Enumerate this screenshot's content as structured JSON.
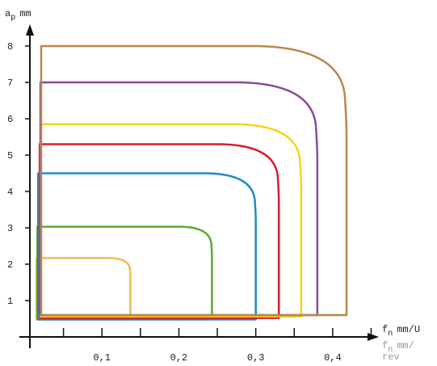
{
  "chart_data": {
    "type": "line",
    "title": "",
    "y_axis": {
      "label_main": "a",
      "label_sub": "p",
      "label_unit": "mm",
      "range": [
        0,
        8.6
      ],
      "ticks": [
        "1",
        "2",
        "3",
        "4",
        "5",
        "6",
        "7",
        "8"
      ]
    },
    "x_axis": {
      "label_main": "f",
      "label_sub": "n",
      "label_unit": "mm/U",
      "label_secondary": "f",
      "label_secondary_sub": "n",
      "label_secondary_unit": "mm/",
      "label_secondary_line2": "rev",
      "range": [
        0,
        0.46
      ],
      "ticks": [
        "0,1",
        "0,2",
        "0,3",
        "0,4"
      ]
    },
    "grid": false,
    "series": [
      {
        "color": "#f5b94f",
        "x_min": 0.015,
        "x_max": 0.137,
        "y_min": 0.48,
        "y_max": 2.17
      },
      {
        "color": "#5aab2e",
        "x_min": 0.016,
        "x_max": 0.243,
        "y_min": 0.48,
        "y_max": 3.03
      },
      {
        "color": "#1a8cc8",
        "x_min": 0.017,
        "x_max": 0.3,
        "y_min": 0.48,
        "y_max": 4.5
      },
      {
        "color": "#d81e2a",
        "x_min": 0.019,
        "x_max": 0.33,
        "y_min": 0.52,
        "y_max": 5.3
      },
      {
        "color": "#f7d417",
        "x_min": 0.02,
        "x_max": 0.359,
        "y_min": 0.56,
        "y_max": 5.85
      },
      {
        "color": "#8b4b9b",
        "x_min": 0.02,
        "x_max": 0.38,
        "y_min": 0.6,
        "y_max": 7.0
      },
      {
        "color": "#b8874c",
        "x_min": 0.021,
        "x_max": 0.418,
        "y_min": 0.6,
        "y_max": 8.0
      }
    ]
  }
}
